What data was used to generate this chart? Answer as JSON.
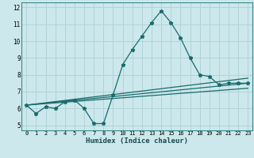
{
  "title": "",
  "xlabel": "Humidex (Indice chaleur)",
  "ylabel": "",
  "bg_color": "#cce8ec",
  "grid_color": "#b0d4d8",
  "line_color": "#1a6b6b",
  "xlim": [
    -0.5,
    23.5
  ],
  "ylim": [
    4.7,
    12.3
  ],
  "xticks": [
    0,
    1,
    2,
    3,
    4,
    5,
    6,
    7,
    8,
    9,
    10,
    11,
    12,
    13,
    14,
    15,
    16,
    17,
    18,
    19,
    20,
    21,
    22,
    23
  ],
  "yticks": [
    5,
    6,
    7,
    8,
    9,
    10,
    11,
    12
  ],
  "curve1_x": [
    0,
    1,
    2,
    3,
    4,
    5,
    6,
    7,
    8,
    9,
    10,
    11,
    12,
    13,
    14,
    15,
    16,
    17,
    18,
    19,
    20,
    21,
    22,
    23
  ],
  "curve1_y": [
    6.2,
    5.7,
    6.1,
    6.0,
    6.4,
    6.5,
    6.0,
    5.1,
    5.1,
    6.8,
    8.6,
    9.5,
    10.3,
    11.1,
    11.8,
    11.1,
    10.2,
    9.0,
    8.0,
    7.9,
    7.4,
    7.5,
    7.5,
    7.5
  ],
  "curve2_x": [
    0,
    23
  ],
  "curve2_y": [
    6.2,
    7.5
  ],
  "curve3_x": [
    0,
    23
  ],
  "curve3_y": [
    6.2,
    7.8
  ],
  "curve4_x": [
    0,
    23
  ],
  "curve4_y": [
    6.2,
    7.2
  ]
}
